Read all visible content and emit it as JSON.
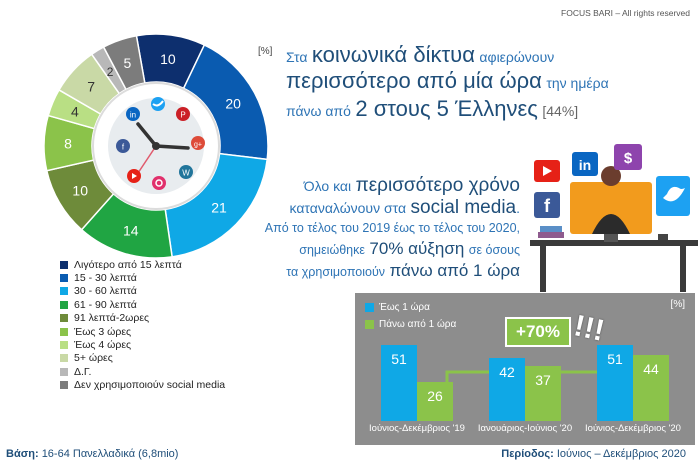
{
  "copyright": "FOCUS BARI – All rights reserved",
  "unit_label": "[%]",
  "headline": {
    "l1_small": "Στα",
    "l1_big": "κοινωνικά δίκτυα",
    "l1_small2": "αφιερώνουν",
    "l2_big": "περισσότερο από μία ώρα",
    "l2_small": "την ημέρα",
    "l3_small": "πάνω από",
    "l3_big": "2 στους 5 Έλληνες",
    "l3_pct": "[44%]"
  },
  "paragraph": {
    "l1_small": "Όλο και",
    "l1_big": "περισσότερο χρόνο",
    "l2_small": "καταναλώνουν στα",
    "l2_big": "social media",
    "l2_end": ".",
    "l3": "Από το τέλος του 2019 έως το τέλος του 2020,",
    "l4_small": "σημειώθηκε",
    "l4_big": "70% αύξηση",
    "l4_end": "σε όσους",
    "l5_small": "τα χρησιμοποιούν",
    "l5_big": "πάνω από 1 ώρα"
  },
  "footer": {
    "basis_label": "Βάση:",
    "basis_value": "16-64 Πανελλαδικά (6,8mio)",
    "period_label": "Περίοδος:",
    "period_value": "Ιούνιος – Δεκέμβριος 2020"
  },
  "colors": {
    "navy": "#0d2f6e",
    "blue": "#0a5bb0",
    "light_blue": "#0fa8e6",
    "green": "#20a543",
    "olive": "#6e8b3a",
    "lime": "#8bc34a",
    "pale_green": "#b9df84",
    "sage": "#c9d9a6",
    "grey_light": "#b8b8b8",
    "grey_dark": "#7c7c7c"
  },
  "chart_data": [
    {
      "type": "pie",
      "title": "",
      "unit": "%",
      "slices": [
        {
          "label": "Λιγότερο από 15 λεπτά",
          "value": 10,
          "color": "#0d2f6e"
        },
        {
          "label": "15 - 30 λεπτά",
          "value": 20,
          "color": "#0a5bb0"
        },
        {
          "label": "30 - 60 λεπτά",
          "value": 21,
          "color": "#0fa8e6"
        },
        {
          "label": "61 - 90 λεπτά",
          "value": 14,
          "color": "#20a543"
        },
        {
          "label": "91 λεπτά-2ωρες",
          "value": 10,
          "color": "#6e8b3a"
        },
        {
          "label": "Έως 3 ώρες",
          "value": 8,
          "color": "#8bc34a"
        },
        {
          "label": "Έως 4 ώρες",
          "value": 4,
          "color": "#b9df84"
        },
        {
          "label": "5+ ώρες",
          "value": 7,
          "color": "#c9d9a6"
        },
        {
          "label": "Δ.Γ.",
          "value": 2,
          "color": "#b8b8b8"
        },
        {
          "label": "Δεν χρησιμοποιούν social media",
          "value": 5,
          "color": "#7c7c7c"
        }
      ],
      "legend_position": "bottom"
    },
    {
      "type": "bar",
      "unit": "[%]",
      "categories": [
        "Ιούνιος-Δεκέμβριος '19",
        "Ιανουάριος-Ιούνιος '20",
        "Ιούνιος-Δεκέμβριος '20"
      ],
      "series": [
        {
          "name": "Έως 1 ώρα",
          "values": [
            51,
            42,
            51
          ],
          "color": "#0fa8e6"
        },
        {
          "name": "Πάνω από 1 ώρα",
          "values": [
            26,
            37,
            44
          ],
          "color": "#8bc34a"
        }
      ],
      "annotation": "+70%",
      "annotation_marks": "!!!",
      "legend_position": "top-left"
    }
  ]
}
